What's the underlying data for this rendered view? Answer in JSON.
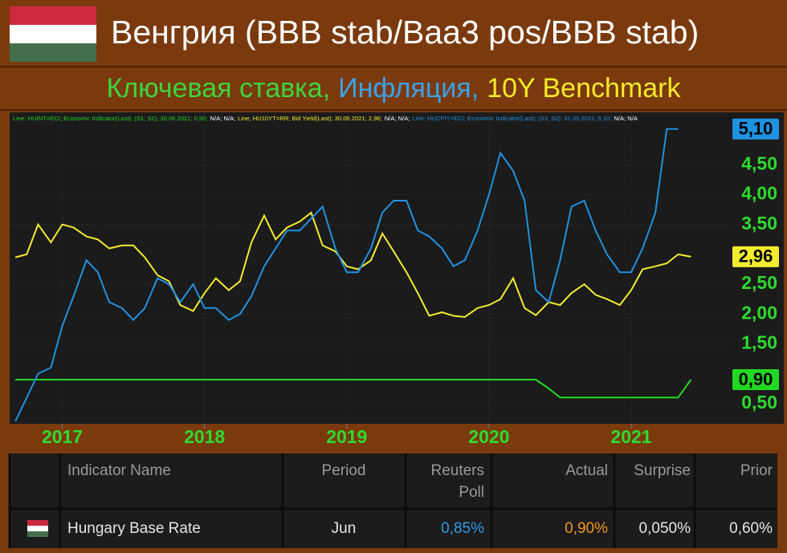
{
  "chart_data": {
    "type": "line",
    "title": "Венгрия (BBB stab/Baa3 pos/BBB stab)",
    "subtitle_parts": [
      {
        "text": "Ключевая ставка,",
        "color": "#3ed43e"
      },
      {
        "text": "Инфляция,",
        "color": "#3aa2ea"
      },
      {
        "text": "10Y Benchmark",
        "color": "#f4ea2a"
      }
    ],
    "x": [
      2016.67,
      2016.75,
      2016.83,
      2016.92,
      2017.0,
      2017.08,
      2017.17,
      2017.25,
      2017.33,
      2017.42,
      2017.5,
      2017.58,
      2017.67,
      2017.75,
      2017.83,
      2017.92,
      2018.0,
      2018.08,
      2018.17,
      2018.25,
      2018.33,
      2018.42,
      2018.5,
      2018.58,
      2018.67,
      2018.75,
      2018.83,
      2018.92,
      2019.0,
      2019.08,
      2019.17,
      2019.25,
      2019.33,
      2019.42,
      2019.5,
      2019.58,
      2019.67,
      2019.75,
      2019.83,
      2019.92,
      2020.0,
      2020.08,
      2020.17,
      2020.25,
      2020.33,
      2020.42,
      2020.5,
      2020.58,
      2020.67,
      2020.75,
      2020.83,
      2020.92,
      2021.0,
      2021.08,
      2021.17,
      2021.25,
      2021.33,
      2021.42
    ],
    "xlim": [
      2016.63,
      2021.7
    ],
    "xticks": [
      2017,
      2018,
      2019,
      2020,
      2021
    ],
    "ylim": [
      0.16,
      5.38
    ],
    "yticks": [
      {
        "value": 0.5,
        "label": "0,50"
      },
      {
        "value": 1.5,
        "label": "1,50"
      },
      {
        "value": 2,
        "label": "2,00"
      },
      {
        "value": 2.5,
        "label": "2,50"
      },
      {
        "value": 3.5,
        "label": "3,50"
      },
      {
        "value": 4,
        "label": "4,00"
      },
      {
        "value": 4.5,
        "label": "4,50"
      }
    ],
    "grid": true,
    "series": [
      {
        "name": "HUINT=ECI",
        "color": "#22d822",
        "end_label": "0,90",
        "legend": "Line; HUINT=ECI; Economic Indicator(Last); (S1; S2); 30.06.2021; 0,90;",
        "legend_tail": "N/A; N/A;",
        "values": [
          0.9,
          0.9,
          0.9,
          0.9,
          0.9,
          0.9,
          0.9,
          0.9,
          0.9,
          0.9,
          0.9,
          0.9,
          0.9,
          0.9,
          0.9,
          0.9,
          0.9,
          0.9,
          0.9,
          0.9,
          0.9,
          0.9,
          0.9,
          0.9,
          0.9,
          0.9,
          0.9,
          0.9,
          0.9,
          0.9,
          0.9,
          0.9,
          0.9,
          0.9,
          0.9,
          0.9,
          0.9,
          0.9,
          0.9,
          0.9,
          0.9,
          0.9,
          0.9,
          0.9,
          0.9,
          0.75,
          0.6,
          0.6,
          0.6,
          0.6,
          0.6,
          0.6,
          0.6,
          0.6,
          0.6,
          0.6,
          0.6,
          0.9
        ]
      },
      {
        "name": "HU10YT=RR",
        "color": "#f2ec2e",
        "end_label": "2,96",
        "legend": "Line; HU10YT=RR; Bid Yield(Last); 30.06.2021; 2,96;",
        "legend_tail": "N/A; N/A;",
        "values": [
          2.95,
          3.0,
          3.5,
          3.2,
          3.5,
          3.45,
          3.3,
          3.25,
          3.1,
          3.15,
          3.15,
          2.95,
          2.65,
          2.55,
          2.15,
          2.05,
          2.35,
          2.6,
          2.4,
          2.55,
          3.2,
          3.65,
          3.25,
          3.45,
          3.55,
          3.7,
          3.15,
          3.05,
          2.8,
          2.75,
          2.9,
          3.35,
          3.05,
          2.7,
          2.35,
          1.97,
          2.03,
          1.97,
          1.95,
          2.1,
          2.15,
          2.25,
          2.6,
          2.1,
          1.98,
          2.2,
          2.15,
          2.35,
          2.5,
          2.32,
          2.25,
          2.15,
          2.4,
          2.75,
          2.8,
          2.85,
          3.0,
          2.96
        ]
      },
      {
        "name": "HUCPIY=ECI",
        "color": "#1f92e2",
        "end_label": "5,10",
        "legend": "Line; HUCPIY=ECI; Economic Indicator(Last); (S1; S2); 31.05.2021; 5,10;",
        "legend_tail": "N/A; N/A",
        "values": [
          0.2,
          0.6,
          1.0,
          1.1,
          1.8,
          2.3,
          2.9,
          2.7,
          2.2,
          2.1,
          1.9,
          2.1,
          2.6,
          2.5,
          2.2,
          2.5,
          2.1,
          2.1,
          1.9,
          2.0,
          2.3,
          2.8,
          3.1,
          3.4,
          3.4,
          3.6,
          3.8,
          3.1,
          2.7,
          2.7,
          3.1,
          3.7,
          3.9,
          3.9,
          3.4,
          3.3,
          3.1,
          2.8,
          2.9,
          3.4,
          4.0,
          4.7,
          4.4,
          3.9,
          2.4,
          2.2,
          2.9,
          3.8,
          3.9,
          3.4,
          3.0,
          2.7,
          2.7,
          3.1,
          3.7,
          5.1,
          5.1,
          null
        ]
      }
    ]
  },
  "table": {
    "columns": [
      "Indicator Name",
      "Period",
      [
        "Reuters",
        "Poll"
      ],
      "Actual",
      "Surprise",
      "Prior"
    ],
    "rows": [
      [
        "Hungary Base Rate",
        "Jun",
        "0,85%",
        "0,90%",
        "0,050%",
        "0,60%"
      ]
    ]
  }
}
